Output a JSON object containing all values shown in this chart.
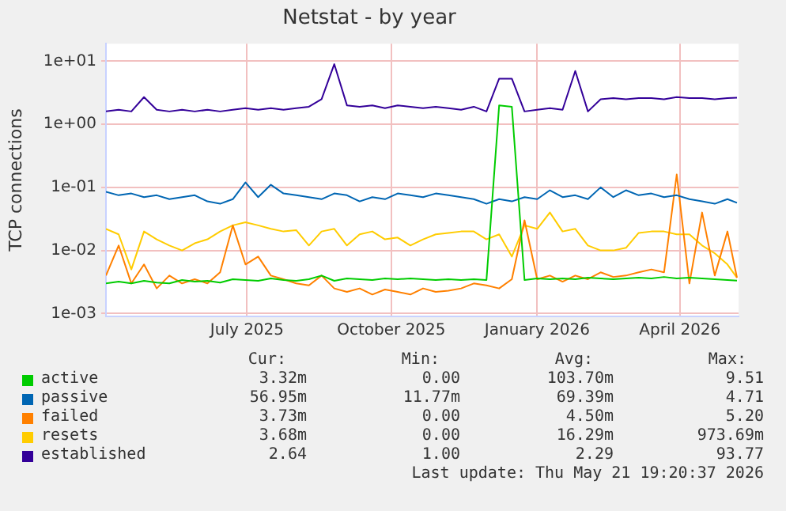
{
  "chart_data": {
    "type": "line",
    "title": "Netstat - by year",
    "ylabel": "TCP connections",
    "log": "y",
    "grid": true,
    "legend": "bottom",
    "xlim": [
      "2025-04-17",
      "2026-05-21"
    ],
    "xticks": [
      {
        "value": "2025-07-15",
        "label": "July 2025"
      },
      {
        "value": "2025-10-14",
        "label": "October 2025"
      },
      {
        "value": "2026-01-14",
        "label": "January 2026"
      },
      {
        "value": "2026-04-14",
        "label": "April 2026"
      }
    ],
    "ylim": [
      0.0009,
      19
    ],
    "yticks": [
      {
        "value": 0.001,
        "label": "1e-03"
      },
      {
        "value": 0.01,
        "label": "1e-02"
      },
      {
        "value": 0.1,
        "label": "1e-01"
      },
      {
        "value": 1,
        "label": "1e+00"
      },
      {
        "value": 10,
        "label": "1e+01"
      }
    ],
    "x": [
      "2025-04-17",
      "2025-04-25",
      "2025-05-03",
      "2025-05-11",
      "2025-05-19",
      "2025-05-27",
      "2025-06-04",
      "2025-06-12",
      "2025-06-20",
      "2025-06-28",
      "2025-07-06",
      "2025-07-14",
      "2025-07-22",
      "2025-07-30",
      "2025-08-07",
      "2025-08-15",
      "2025-08-23",
      "2025-08-31",
      "2025-09-08",
      "2025-09-16",
      "2025-09-24",
      "2025-10-02",
      "2025-10-10",
      "2025-10-18",
      "2025-10-26",
      "2025-11-03",
      "2025-11-11",
      "2025-11-19",
      "2025-11-27",
      "2025-12-05",
      "2025-12-13",
      "2025-12-21",
      "2025-12-29",
      "2026-01-06",
      "2026-01-14",
      "2026-01-22",
      "2026-01-30",
      "2026-02-07",
      "2026-02-15",
      "2026-02-23",
      "2026-03-03",
      "2026-03-11",
      "2026-03-19",
      "2026-03-27",
      "2026-04-04",
      "2026-04-12",
      "2026-04-20",
      "2026-04-28",
      "2026-05-06",
      "2026-05-14",
      "2026-05-20"
    ],
    "series": [
      {
        "name": "active",
        "color": "#00cc00",
        "values": [
          0.003,
          0.0032,
          0.003,
          0.0033,
          0.0031,
          0.003,
          0.0034,
          0.0032,
          0.0033,
          0.0031,
          0.0035,
          0.0034,
          0.0033,
          0.0036,
          0.0034,
          0.0033,
          0.0035,
          0.004,
          0.0033,
          0.0036,
          0.0035,
          0.0034,
          0.0036,
          0.0035,
          0.0036,
          0.0035,
          0.0034,
          0.0035,
          0.0034,
          0.0035,
          0.0034,
          2.0,
          1.9,
          0.0034,
          0.0036,
          0.0035,
          0.0036,
          0.0035,
          0.0037,
          0.0036,
          0.0035,
          0.0036,
          0.0037,
          0.0036,
          0.0038,
          0.0036,
          0.0037,
          0.0036,
          0.0035,
          0.0034,
          0.00332
        ]
      },
      {
        "name": "passive",
        "color": "#0066b3",
        "values": [
          0.085,
          0.075,
          0.08,
          0.07,
          0.075,
          0.065,
          0.07,
          0.075,
          0.06,
          0.055,
          0.065,
          0.12,
          0.07,
          0.11,
          0.08,
          0.075,
          0.07,
          0.065,
          0.08,
          0.075,
          0.06,
          0.07,
          0.065,
          0.08,
          0.075,
          0.07,
          0.08,
          0.075,
          0.07,
          0.065,
          0.055,
          0.065,
          0.06,
          0.07,
          0.065,
          0.09,
          0.07,
          0.075,
          0.065,
          0.1,
          0.07,
          0.09,
          0.075,
          0.08,
          0.07,
          0.075,
          0.065,
          0.06,
          0.055,
          0.065,
          0.057
        ]
      },
      {
        "name": "failed",
        "color": "#ff8000",
        "values": [
          0.004,
          0.012,
          0.003,
          0.006,
          0.0025,
          0.004,
          0.003,
          0.0035,
          0.003,
          0.0045,
          0.025,
          0.006,
          0.008,
          0.004,
          0.0035,
          0.003,
          0.0028,
          0.004,
          0.0025,
          0.0022,
          0.0025,
          0.002,
          0.0024,
          0.0022,
          0.002,
          0.0025,
          0.0022,
          0.0023,
          0.0025,
          0.003,
          0.0028,
          0.0025,
          0.0035,
          0.03,
          0.0035,
          0.004,
          0.0032,
          0.004,
          0.0035,
          0.0045,
          0.0038,
          0.004,
          0.0045,
          0.005,
          0.0045,
          0.16,
          0.003,
          0.04,
          0.004,
          0.02,
          0.0037
        ]
      },
      {
        "name": "resets",
        "color": "#ffcc00",
        "values": [
          0.022,
          0.018,
          0.005,
          0.02,
          0.015,
          0.012,
          0.01,
          0.013,
          0.015,
          0.02,
          0.025,
          0.028,
          0.025,
          0.022,
          0.02,
          0.021,
          0.012,
          0.02,
          0.022,
          0.012,
          0.018,
          0.02,
          0.015,
          0.016,
          0.012,
          0.015,
          0.018,
          0.019,
          0.02,
          0.02,
          0.015,
          0.018,
          0.008,
          0.025,
          0.022,
          0.04,
          0.02,
          0.022,
          0.012,
          0.01,
          0.01,
          0.011,
          0.019,
          0.02,
          0.02,
          0.018,
          0.018,
          0.012,
          0.009,
          0.006,
          0.0037
        ]
      },
      {
        "name": "established",
        "color": "#330099",
        "values": [
          1.6,
          1.7,
          1.6,
          2.7,
          1.7,
          1.6,
          1.7,
          1.6,
          1.7,
          1.6,
          1.7,
          1.8,
          1.7,
          1.8,
          1.7,
          1.8,
          1.9,
          2.5,
          9.0,
          2.0,
          1.9,
          2.0,
          1.8,
          2.0,
          1.9,
          1.8,
          1.9,
          1.8,
          1.7,
          1.9,
          1.6,
          5.3,
          5.3,
          1.6,
          1.7,
          1.8,
          1.7,
          7.0,
          1.6,
          2.5,
          2.6,
          2.5,
          2.6,
          2.6,
          2.5,
          2.7,
          2.6,
          2.6,
          2.5,
          2.6,
          2.64
        ]
      }
    ],
    "annotations": [
      "Cur:",
      "Min:",
      "Avg:",
      "Max:",
      "3.32m",
      "0.00",
      "103.70m",
      "9.51",
      "56.95m",
      "11.77m",
      "69.39m",
      "4.71",
      "3.73m",
      "0.00",
      "4.50m",
      "5.20",
      "3.68m",
      "0.00",
      "16.29m",
      "973.69m",
      "2.64",
      "1.00",
      "2.29",
      "93.77",
      "Last update: Thu May 21 19:20:37 2026"
    ]
  }
}
